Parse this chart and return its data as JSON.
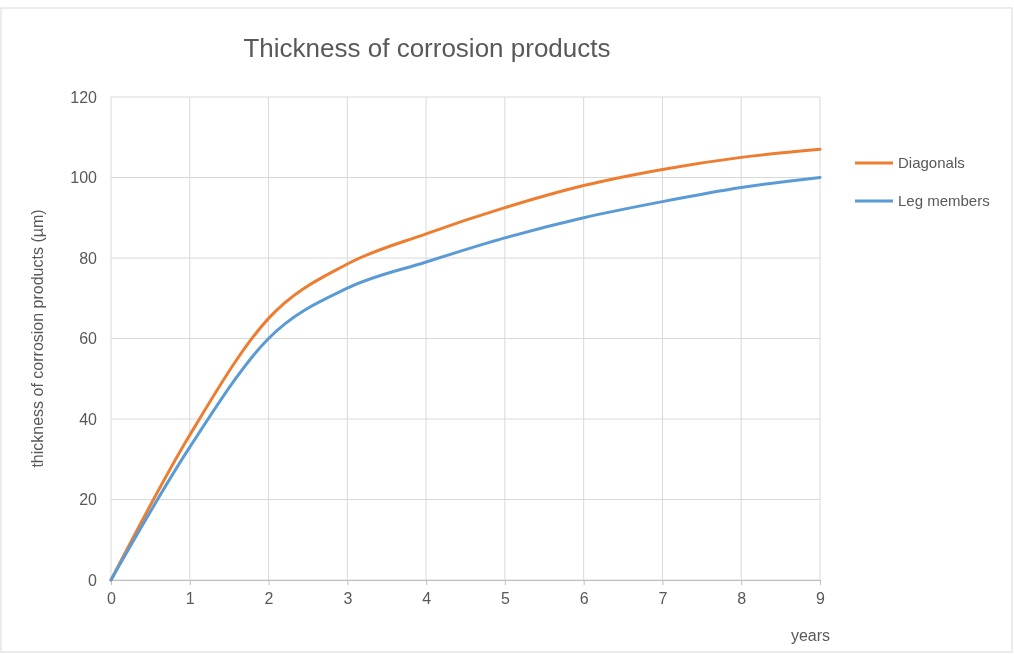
{
  "chart_data": {
    "type": "line",
    "title": "Thickness of corrosion products",
    "xlabel": "years",
    "ylabel": "thickness of corrosion products (µm)",
    "x": [
      0,
      1,
      2,
      3,
      4,
      5,
      6,
      7,
      8,
      9
    ],
    "series": [
      {
        "name": "Diagonals",
        "color": "#ed7d31",
        "values": [
          0,
          36,
          65,
          78.5,
          86,
          92.5,
          98,
          102,
          105,
          107
        ]
      },
      {
        "name": "Leg members",
        "color": "#5b9bd5",
        "values": [
          0,
          33,
          60,
          72.5,
          79,
          85,
          90,
          94,
          97.5,
          100
        ]
      }
    ],
    "xlim": [
      0,
      9
    ],
    "xticks": [
      0,
      1,
      2,
      3,
      4,
      5,
      6,
      7,
      8,
      9
    ],
    "ylim": [
      0,
      120
    ],
    "yticks": [
      0,
      20,
      40,
      60,
      80,
      100,
      120
    ],
    "grid": true,
    "legend": "right",
    "marker": "none",
    "line_style": "solid"
  }
}
